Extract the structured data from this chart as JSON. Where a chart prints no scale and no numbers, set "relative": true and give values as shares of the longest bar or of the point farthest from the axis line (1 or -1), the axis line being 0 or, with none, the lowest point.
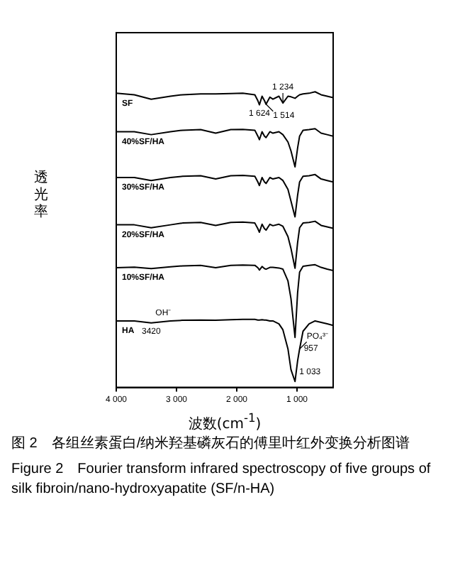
{
  "chart_data": {
    "type": "line",
    "title": "图 2　各组丝素蛋白/纳米羟基磷灰石的傅里叶红外变换分析图谱",
    "subtitle": "Figure 2　Fourier transform infrared spectroscopy of five groups of silk fibroin/nano-hydroxyapatite (SF/n-HA)",
    "xlabel": "波数(cm$^{-1}$)",
    "ylabel": "透光率",
    "relative": true,
    "legend": false,
    "grid": false,
    "marker": "none",
    "line_style": "solid",
    "xlim": [
      4000,
      400
    ],
    "xticks": [
      {
        "value": 4000,
        "label": "4 000"
      },
      {
        "value": 3000,
        "label": "3 000"
      },
      {
        "value": 2000,
        "label": "2 000"
      },
      {
        "value": 1000,
        "label": "1 000"
      }
    ],
    "x": [
      4000,
      3700,
      3420,
      3100,
      2900,
      2600,
      2350,
      2100,
      1900,
      1700,
      1650,
      1624,
      1580,
      1540,
      1514,
      1450,
      1400,
      1300,
      1234,
      1150,
      1100,
      1033,
      990,
      957,
      900,
      800,
      700,
      600,
      500,
      400
    ],
    "series": [
      {
        "name": "SF",
        "color": "#000000",
        "values": [
          0.995,
          0.99,
          0.975,
          0.985,
          0.99,
          0.993,
          0.993,
          0.994,
          0.995,
          0.99,
          0.97,
          0.956,
          0.985,
          0.97,
          0.958,
          0.982,
          0.975,
          0.985,
          0.962,
          0.985,
          0.983,
          0.978,
          0.985,
          0.99,
          0.993,
          0.995,
          1,
          0.99,
          0.985,
          0.98
        ]
      },
      {
        "name": "40%SF/HA",
        "color": "#000000",
        "values": [
          0.865,
          0.865,
          0.855,
          0.865,
          0.87,
          0.872,
          0.86,
          0.872,
          0.873,
          0.87,
          0.85,
          0.838,
          0.865,
          0.85,
          0.845,
          0.865,
          0.86,
          0.865,
          0.855,
          0.83,
          0.8,
          0.746,
          0.81,
          0.85,
          0.87,
          0.872,
          0.875,
          0.86,
          0.855,
          0.85
        ]
      },
      {
        "name": "30%SF/HA",
        "color": "#000000",
        "values": [
          0.71,
          0.71,
          0.7,
          0.71,
          0.714,
          0.716,
          0.705,
          0.716,
          0.717,
          0.714,
          0.695,
          0.683,
          0.71,
          0.695,
          0.69,
          0.71,
          0.705,
          0.71,
          0.7,
          0.67,
          0.63,
          0.577,
          0.65,
          0.695,
          0.714,
          0.716,
          0.72,
          0.705,
          0.7,
          0.695
        ]
      },
      {
        "name": "20%SF/HA",
        "color": "#000000",
        "values": [
          0.55,
          0.55,
          0.54,
          0.55,
          0.556,
          0.558,
          0.548,
          0.558,
          0.559,
          0.556,
          0.537,
          0.525,
          0.552,
          0.537,
          0.532,
          0.552,
          0.547,
          0.552,
          0.545,
          0.51,
          0.47,
          0.403,
          0.49,
          0.54,
          0.556,
          0.558,
          0.562,
          0.548,
          0.543,
          0.538
        ]
      },
      {
        "name": "10%SF/HA",
        "color": "#000000",
        "values": [
          0.405,
          0.407,
          0.402,
          0.408,
          0.411,
          0.413,
          0.405,
          0.413,
          0.414,
          0.413,
          0.405,
          0.397,
          0.409,
          0.402,
          0.4,
          0.406,
          0.406,
          0.404,
          0.4,
          0.36,
          0.3,
          0.169,
          0.32,
          0.39,
          0.41,
          0.413,
          0.415,
          0.406,
          0.4,
          0.395
        ]
      },
      {
        "name": "HA",
        "color": "#000000",
        "values": [
          0.225,
          0.225,
          0.218,
          0.225,
          0.227,
          0.228,
          0.227,
          0.229,
          0.23,
          0.23,
          0.228,
          0.228,
          0.229,
          0.228,
          0.228,
          0.225,
          0.225,
          0.215,
          0.195,
          0.13,
          0.06,
          0.02,
          0.09,
          0.13,
          0.19,
          0.215,
          0.225,
          0.22,
          0.215,
          0.21
        ]
      }
    ],
    "annotations": [
      {
        "text": "1 624",
        "x": 1624,
        "y": 0.956
      },
      {
        "text": "1 514",
        "x": 1514,
        "y": 0.958
      },
      {
        "text": "1 234",
        "x": 1234,
        "y": 0.962
      },
      {
        "text": "3420",
        "x": 3420,
        "y": 0.218
      },
      {
        "text": "OH⁻",
        "x": 3420,
        "y": 0.218
      },
      {
        "text": "957",
        "x": 957,
        "y": 0.13
      },
      {
        "text": "1 033",
        "x": 1033,
        "y": 0.02
      },
      {
        "text": "PO₄³⁻",
        "x": 957,
        "y": 0.13
      }
    ]
  }
}
